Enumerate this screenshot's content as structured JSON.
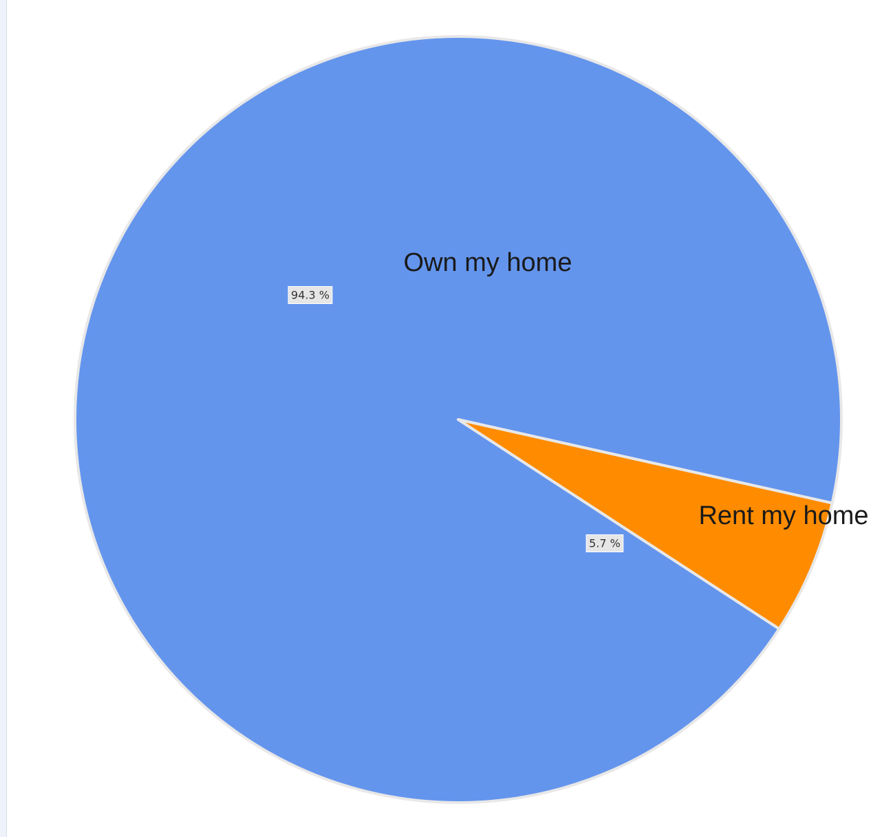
{
  "chart_data": {
    "type": "pie",
    "slices": [
      {
        "label": "Own my home",
        "value": 94.3,
        "value_label": "94.3 %",
        "color": "#6495ED"
      },
      {
        "label": "Rent my home",
        "value": 5.7,
        "value_label": "5.7 %",
        "color": "#FF8C00"
      }
    ],
    "slice_border_color": "#E8E8E8",
    "value_label_background": "#E6E6E6",
    "legend": "none"
  }
}
